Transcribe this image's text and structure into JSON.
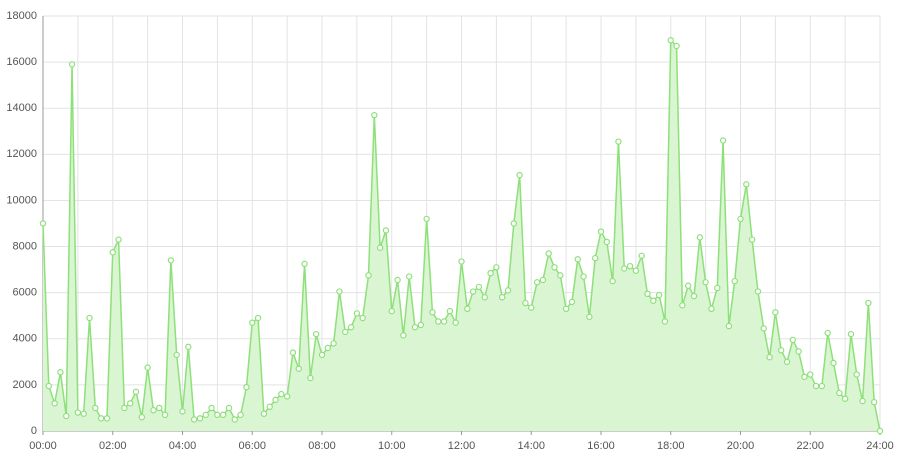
{
  "chart_data": {
    "type": "area",
    "categories": [
      "00:00",
      null,
      null,
      null,
      null,
      null,
      null,
      null,
      null,
      null,
      null,
      null,
      "02:00",
      null,
      null,
      null,
      null,
      null,
      null,
      null,
      null,
      null,
      null,
      null,
      "04:00",
      null,
      null,
      null,
      null,
      null,
      null,
      null,
      null,
      null,
      null,
      null,
      "06:00",
      null,
      null,
      null,
      null,
      null,
      null,
      null,
      null,
      null,
      null,
      null,
      "08:00",
      null,
      null,
      null,
      null,
      null,
      null,
      null,
      null,
      null,
      null,
      null,
      "10:00",
      null,
      null,
      null,
      null,
      null,
      null,
      null,
      null,
      null,
      null,
      null,
      "12:00",
      null,
      null,
      null,
      null,
      null,
      null,
      null,
      null,
      null,
      null,
      null,
      "14:00",
      null,
      null,
      null,
      null,
      null,
      null,
      null,
      null,
      null,
      null,
      null,
      "16:00",
      null,
      null,
      null,
      null,
      null,
      null,
      null,
      null,
      null,
      null,
      null,
      "18:00",
      null,
      null,
      null,
      null,
      null,
      null,
      null,
      null,
      null,
      null,
      null,
      "20:00",
      null,
      null,
      null,
      null,
      null,
      null,
      null,
      null,
      null,
      null,
      null,
      "22:00",
      null,
      null,
      null,
      null,
      null,
      null,
      null,
      null,
      null,
      null,
      null,
      "24:00"
    ],
    "values": [
      9000,
      1950,
      1200,
      2550,
      650,
      15900,
      800,
      750,
      4900,
      1000,
      550,
      550,
      7750,
      8300,
      1000,
      1200,
      1700,
      600,
      2750,
      900,
      1000,
      700,
      7400,
      3300,
      850,
      3650,
      500,
      550,
      700,
      1000,
      700,
      700,
      1000,
      500,
      700,
      1900,
      4700,
      4900,
      750,
      1050,
      1350,
      1600,
      1500,
      3400,
      2700,
      7250,
      2300,
      4200,
      3300,
      3600,
      3800,
      6050,
      4300,
      4500,
      5100,
      4900,
      6750,
      13700,
      7950,
      8700,
      5200,
      6550,
      4150,
      6700,
      4500,
      4600,
      9200,
      5150,
      4750,
      4750,
      5200,
      4700,
      7350,
      5300,
      6050,
      6250,
      5800,
      6850,
      7100,
      5800,
      6100,
      9000,
      11100,
      5550,
      5350,
      6450,
      6550,
      7700,
      7100,
      6750,
      5300,
      5600,
      7450,
      6700,
      4950,
      7500,
      8650,
      8200,
      6500,
      12550,
      7050,
      7150,
      6950,
      7600,
      5950,
      5650,
      5900,
      4750,
      16950,
      16700,
      5450,
      6300,
      5850,
      8400,
      6450,
      5300,
      6200,
      12600,
      4550,
      6500,
      9200,
      10700,
      8300,
      6050,
      4450,
      3200,
      5150,
      3500,
      3000,
      3950,
      3450,
      2350,
      2450,
      1950,
      1950,
      4250,
      2950,
      1650,
      1400,
      4200,
      2450,
      1300,
      5550,
      1250,
      0
    ],
    "color": "#8ee07a",
    "fill_color": "#d9f5d2",
    "ylim": [
      0,
      18000
    ],
    "yticks": [
      0,
      2000,
      4000,
      6000,
      8000,
      10000,
      12000,
      14000,
      16000,
      18000
    ],
    "grid": true
  }
}
